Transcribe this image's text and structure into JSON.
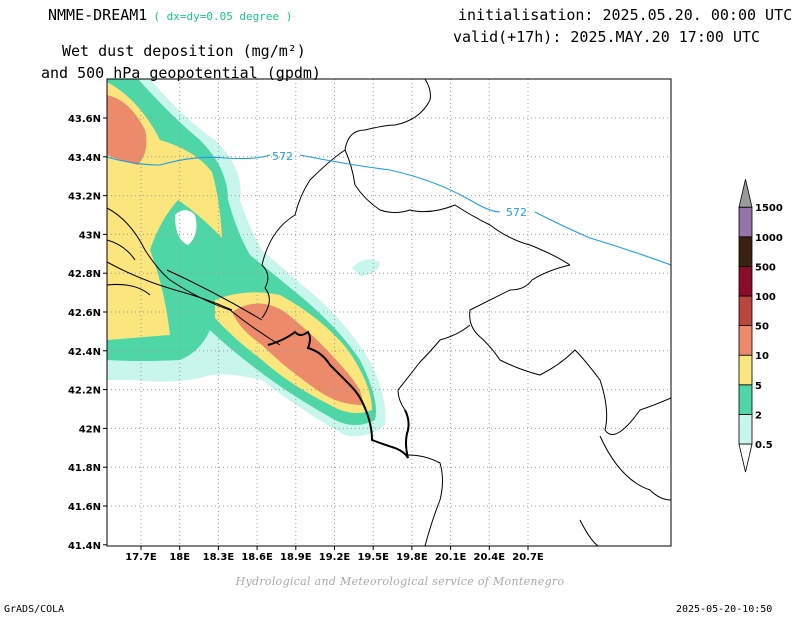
{
  "header": {
    "model": "NMME-DREAM1",
    "resolution": "( dx=dy=0.05 degree )",
    "field_line1": "Wet dust deposition (mg/m²)",
    "field_line2": "and 500 hPa geopotential (gpdm)",
    "initialisation": "initialisation: 2025.05.20. 00:00 UTC",
    "valid": "valid(+17h): 2025.MAY.20 17:00 UTC"
  },
  "footer": {
    "credit": "Hydrological and Meteorological service of Montenegro",
    "software": "GrADS/COLA",
    "timestamp": "2025-05-20-10:50"
  },
  "map": {
    "lon_ticks": [
      "17.7E",
      "18E",
      "18.3E",
      "18.6E",
      "18.9E",
      "19.2E",
      "19.5E",
      "19.8E",
      "20.1E",
      "20.4E",
      "20.7E"
    ],
    "lat_ticks": [
      "43.6N",
      "43.4N",
      "43.2N",
      "43N",
      "42.8N",
      "42.6N",
      "42.4N",
      "42.2N",
      "42N",
      "41.8N",
      "41.6N",
      "41.4N"
    ],
    "contour_labels": [
      "572",
      "572"
    ],
    "contour_color": "#1e9de8"
  },
  "legend": {
    "levels": [
      "0.5",
      "2",
      "5",
      "10",
      "50",
      "100",
      "500",
      "1000",
      "1500"
    ],
    "colors": [
      "#c8f5ec",
      "#4fd6a6",
      "#fbe67d",
      "#ec8a6a",
      "#b9473d",
      "#8a0c28",
      "#3a2212",
      "#9474a9",
      "#9a9a9a"
    ]
  }
}
